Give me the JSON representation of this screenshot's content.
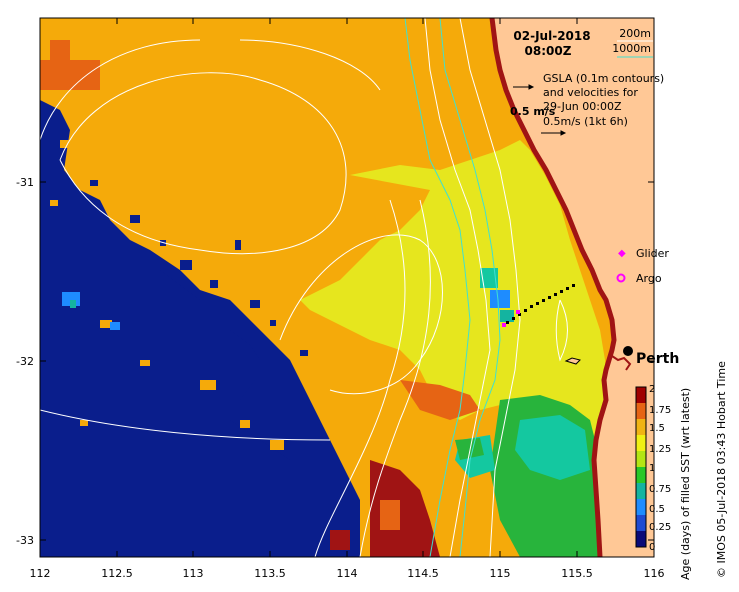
{
  "title": {
    "date": "02-Jul-2018",
    "time": "08:00Z"
  },
  "depth_legend": {
    "shallow": "200m",
    "deep": "1000m",
    "shallow_color": "#ffffff",
    "deep_color": "#40e0d0"
  },
  "gsla_note": {
    "line1": "GSLA (0.1m contours)",
    "line2": "and velocities for",
    "line3": "29-Jun 00:00Z",
    "scale_label": "0.5 m/s",
    "line4": "0.5m/s (1kt 6h)"
  },
  "legend": {
    "glider_label": "Glider",
    "argo_label": "Argo",
    "glider_color": "#ff00ff",
    "argo_color": "#ff00ff"
  },
  "city": {
    "name": "Perth"
  },
  "axes": {
    "x_ticks": [
      "112",
      "112.5",
      "113",
      "113.5",
      "114",
      "114.5",
      "115",
      "115.5",
      "116"
    ],
    "y_ticks": [
      "-31",
      "-32",
      "-33"
    ]
  },
  "colorbar": {
    "label": "Age (days) of filled SST (wrt latest)",
    "ticks": [
      "0",
      "0.25",
      "0.5",
      "0.75",
      "1",
      "1.25",
      "1.5",
      "1.75",
      "2"
    ],
    "colors": [
      "#0a0a78",
      "#1e4bd2",
      "#1e8cff",
      "#14b4a0",
      "#28c828",
      "#b4e614",
      "#f0f014",
      "#f0b414",
      "#e66414",
      "#a00000"
    ]
  },
  "credit": "© IMOS 05-Jul-2018 03:43 Hobart Time",
  "colors": {
    "land": "#ffc896",
    "orange": "#f5aa0a",
    "deep_blue": "#0a1e8c",
    "yellow": "#e6e61e",
    "green": "#28b43c",
    "teal": "#14c8a0",
    "dark_red": "#a01414"
  }
}
